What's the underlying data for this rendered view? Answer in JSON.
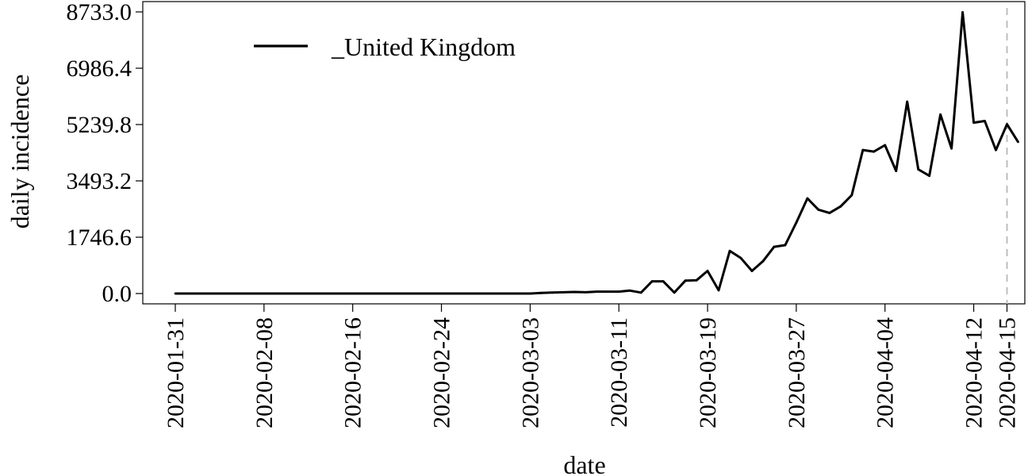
{
  "chart_data": {
    "type": "line",
    "xlabel": "date",
    "ylabel": "daily incidence",
    "y_ticks": [
      "0.0",
      "1746.6",
      "3493.2",
      "5239.8",
      "6986.4",
      "8733.0"
    ],
    "x_ticks": [
      "2020-01-31",
      "2020-02-08",
      "2020-02-16",
      "2020-02-24",
      "2020-03-03",
      "2020-03-11",
      "2020-03-19",
      "2020-03-27",
      "2020-04-04",
      "2020-04-12",
      "2020-04-15"
    ],
    "xlim": [
      "2020-01-31",
      "2020-04-15"
    ],
    "ylim": [
      0,
      8733
    ],
    "grid": false,
    "legend_position": "top-left",
    "reference_line": {
      "date": "2020-04-15",
      "style": "dashed",
      "color": "#bdbdbd"
    },
    "series": [
      {
        "name": "_United Kingdom",
        "color": "#000000",
        "points": [
          [
            "2020-01-31",
            0
          ],
          [
            "2020-02-01",
            0
          ],
          [
            "2020-02-02",
            0
          ],
          [
            "2020-02-03",
            0
          ],
          [
            "2020-02-04",
            0
          ],
          [
            "2020-02-05",
            0
          ],
          [
            "2020-02-06",
            0
          ],
          [
            "2020-02-07",
            0
          ],
          [
            "2020-02-08",
            0
          ],
          [
            "2020-02-09",
            0
          ],
          [
            "2020-02-10",
            0
          ],
          [
            "2020-02-11",
            0
          ],
          [
            "2020-02-12",
            0
          ],
          [
            "2020-02-13",
            0
          ],
          [
            "2020-02-14",
            0
          ],
          [
            "2020-02-15",
            0
          ],
          [
            "2020-02-16",
            0
          ],
          [
            "2020-02-17",
            0
          ],
          [
            "2020-02-18",
            0
          ],
          [
            "2020-02-19",
            0
          ],
          [
            "2020-02-20",
            0
          ],
          [
            "2020-02-21",
            0
          ],
          [
            "2020-02-22",
            0
          ],
          [
            "2020-02-23",
            0
          ],
          [
            "2020-02-24",
            0
          ],
          [
            "2020-02-25",
            0
          ],
          [
            "2020-02-26",
            0
          ],
          [
            "2020-02-27",
            0
          ],
          [
            "2020-02-28",
            0
          ],
          [
            "2020-02-29",
            0
          ],
          [
            "2020-03-01",
            0
          ],
          [
            "2020-03-02",
            0
          ],
          [
            "2020-03-03",
            0
          ],
          [
            "2020-03-04",
            20
          ],
          [
            "2020-03-05",
            30
          ],
          [
            "2020-03-06",
            40
          ],
          [
            "2020-03-07",
            50
          ],
          [
            "2020-03-08",
            40
          ],
          [
            "2020-03-09",
            60
          ],
          [
            "2020-03-10",
            60
          ],
          [
            "2020-03-11",
            60
          ],
          [
            "2020-03-12",
            90
          ],
          [
            "2020-03-13",
            30
          ],
          [
            "2020-03-14",
            380
          ],
          [
            "2020-03-15",
            380
          ],
          [
            "2020-03-16",
            30
          ],
          [
            "2020-03-17",
            400
          ],
          [
            "2020-03-18",
            410
          ],
          [
            "2020-03-19",
            700
          ],
          [
            "2020-03-20",
            100
          ],
          [
            "2020-03-21",
            1320
          ],
          [
            "2020-03-22",
            1100
          ],
          [
            "2020-03-23",
            700
          ],
          [
            "2020-03-24",
            1000
          ],
          [
            "2020-03-25",
            1450
          ],
          [
            "2020-03-26",
            1500
          ],
          [
            "2020-03-27",
            2200
          ],
          [
            "2020-03-28",
            2950
          ],
          [
            "2020-03-29",
            2600
          ],
          [
            "2020-03-30",
            2500
          ],
          [
            "2020-03-31",
            2700
          ],
          [
            "2020-04-01",
            3050
          ],
          [
            "2020-04-02",
            4450
          ],
          [
            "2020-04-03",
            4400
          ],
          [
            "2020-04-04",
            4600
          ],
          [
            "2020-04-05",
            3800
          ],
          [
            "2020-04-06",
            5950
          ],
          [
            "2020-04-07",
            3850
          ],
          [
            "2020-04-08",
            3650
          ],
          [
            "2020-04-09",
            5550
          ],
          [
            "2020-04-10",
            4500
          ],
          [
            "2020-04-11",
            8720
          ],
          [
            "2020-04-12",
            5300
          ],
          [
            "2020-04-13",
            5350
          ],
          [
            "2020-04-14",
            4450
          ],
          [
            "2020-04-15",
            5250
          ],
          [
            "2020-04-16",
            4700
          ]
        ]
      }
    ]
  }
}
